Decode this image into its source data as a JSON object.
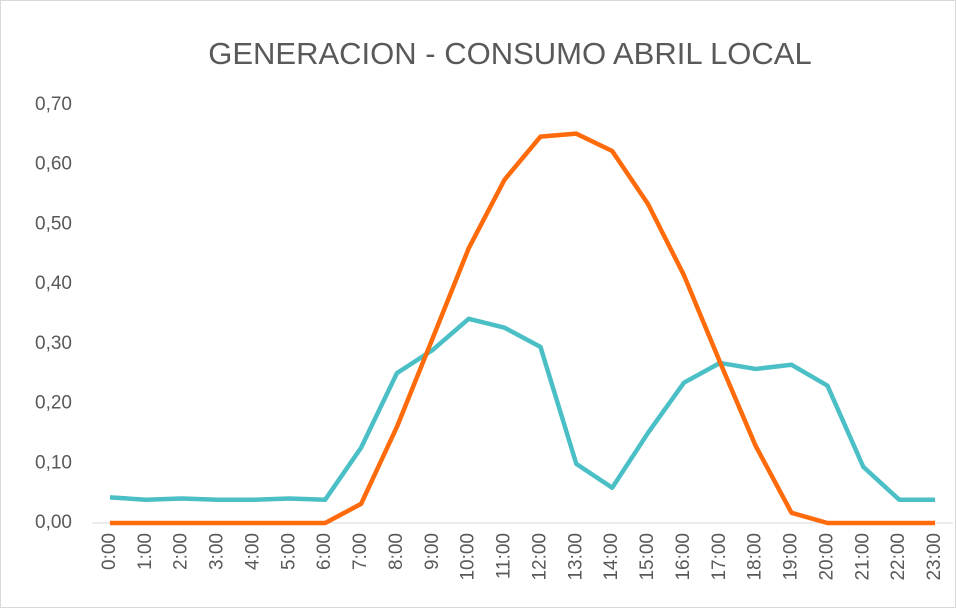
{
  "chart_data": {
    "type": "line",
    "title": "GENERACION - CONSUMO ABRIL LOCAL",
    "categories": [
      "0:00",
      "1:00",
      "2:00",
      "3:00",
      "4:00",
      "5:00",
      "6:00",
      "7:00",
      "8:00",
      "9:00",
      "10:00",
      "11:00",
      "12:00",
      "13:00",
      "14:00",
      "15:00",
      "16:00",
      "17:00",
      "18:00",
      "19:00",
      "20:00",
      "21:00",
      "22:00",
      "23:00"
    ],
    "series": [
      {
        "color": "#4bbfc6",
        "values": [
          0.043,
          0.039,
          0.041,
          0.039,
          0.039,
          0.041,
          0.039,
          0.126,
          0.251,
          0.29,
          0.342,
          0.327,
          0.295,
          0.099,
          0.059,
          0.151,
          0.235,
          0.268,
          0.258,
          0.265,
          0.23,
          0.094,
          0.039,
          0.039
        ]
      },
      {
        "color": "#ff6a0a",
        "values": [
          0,
          0,
          0,
          0,
          0,
          0,
          0,
          0.032,
          0.161,
          0.31,
          0.46,
          0.575,
          0.647,
          0.652,
          0.623,
          0.534,
          0.415,
          0.27,
          0.129,
          0.017,
          0,
          0,
          0,
          0
        ]
      }
    ],
    "ylim": [
      0,
      0.7
    ],
    "yticks": [
      {
        "value": 0,
        "label": "0,00"
      },
      {
        "value": 0.1,
        "label": "0,10"
      },
      {
        "value": 0.2,
        "label": "0,20"
      },
      {
        "value": 0.3,
        "label": "0,30"
      },
      {
        "value": 0.4,
        "label": "0,40"
      },
      {
        "value": 0.5,
        "label": "0,50"
      },
      {
        "value": 0.6,
        "label": "0,60"
      },
      {
        "value": 0.7,
        "label": "0,70"
      }
    ],
    "grid": false
  }
}
